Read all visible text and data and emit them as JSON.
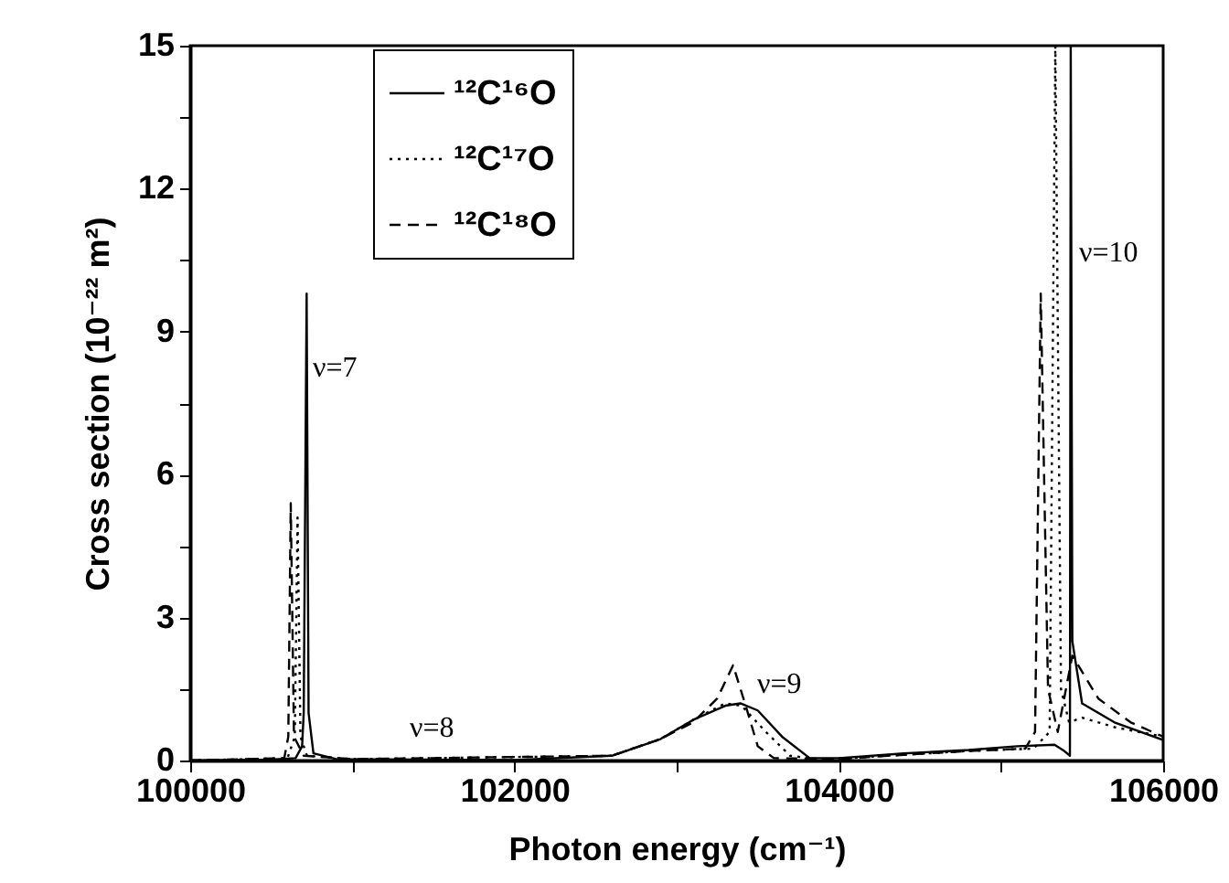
{
  "chart_data": {
    "type": "line",
    "xlabel": "Photon energy (cm⁻¹)",
    "ylabel": "Cross section (10⁻²² m²)",
    "xlim": [
      100000,
      106000
    ],
    "ylim": [
      0,
      15
    ],
    "xticks": [
      100000,
      {
        "value": 101000,
        "label": null
      },
      102000,
      {
        "value": 103000,
        "label": null
      },
      104000,
      {
        "value": 105000,
        "label": null
      },
      106000
    ],
    "yticks": [
      0,
      {
        "value": 1.5,
        "label": null
      },
      3,
      {
        "value": 4.5,
        "label": null
      },
      6,
      {
        "value": 7.5,
        "label": null
      },
      9,
      {
        "value": 10.5,
        "label": null
      },
      12,
      {
        "value": 13.5,
        "label": null
      },
      15
    ],
    "grid": false,
    "legend": "top left",
    "marker": "none",
    "series": [
      {
        "name": "¹²C¹⁶O",
        "color": "#000000",
        "line_style": "solid",
        "x": [
          100000,
          100500,
          100650,
          100690,
          100700,
          100718,
          100730,
          100760,
          100900,
          102000,
          102600,
          102900,
          103100,
          103300,
          103393,
          103500,
          103650,
          103820,
          104000,
          104400,
          104800,
          105100,
          105330,
          105390,
          105425,
          105430,
          105440,
          105500,
          105700,
          106000
        ],
        "values": [
          0,
          0.02,
          0.05,
          0.3,
          1.0,
          9.8,
          1.0,
          0.15,
          0.03,
          0.01,
          0.1,
          0.45,
          0.85,
          1.15,
          1.2,
          1.05,
          0.5,
          0.05,
          0.05,
          0.15,
          0.22,
          0.3,
          0.33,
          0.2,
          0.1,
          15,
          2.5,
          1.2,
          0.8,
          0.43
        ]
      },
      {
        "name": "¹²C¹⁷O",
        "color": "#000000",
        "line_style": "dotted",
        "x": [
          100000,
          100600,
          100645,
          100662,
          100680,
          100720,
          101000,
          102600,
          102900,
          103100,
          103300,
          103400,
          103550,
          103700,
          103900,
          104400,
          104800,
          105200,
          105300,
          105335,
          105370,
          105420,
          105500,
          105700,
          106000
        ],
        "values": [
          0,
          0.05,
          0.5,
          5.1,
          0.5,
          0.1,
          0.03,
          0.1,
          0.45,
          0.85,
          1.2,
          1.15,
          0.6,
          0.1,
          0.02,
          0.12,
          0.2,
          0.25,
          0.6,
          15,
          1.5,
          0.8,
          0.9,
          0.7,
          0.5
        ]
      },
      {
        "name": "¹²C¹⁸O",
        "color": "#000000",
        "line_style": "dashed",
        "x": [
          100000,
          100580,
          100605,
          100620,
          100640,
          100700,
          101000,
          102600,
          102900,
          103100,
          103250,
          103348,
          103430,
          103500,
          103600,
          104000,
          104400,
          104800,
          105150,
          105210,
          105245,
          105290,
          105350,
          105440,
          105600,
          105800,
          106000
        ],
        "values": [
          0,
          0.05,
          0.5,
          5.4,
          0.5,
          0.1,
          0.03,
          0.1,
          0.45,
          0.8,
          1.3,
          2.0,
          1.1,
          0.3,
          0.05,
          0.03,
          0.12,
          0.2,
          0.25,
          0.6,
          9.8,
          1.5,
          0.6,
          2.2,
          1.3,
          0.8,
          0.5
        ]
      }
    ],
    "annotations": [
      "ν=7",
      "ν=8",
      "ν=9",
      "ν=10"
    ]
  }
}
